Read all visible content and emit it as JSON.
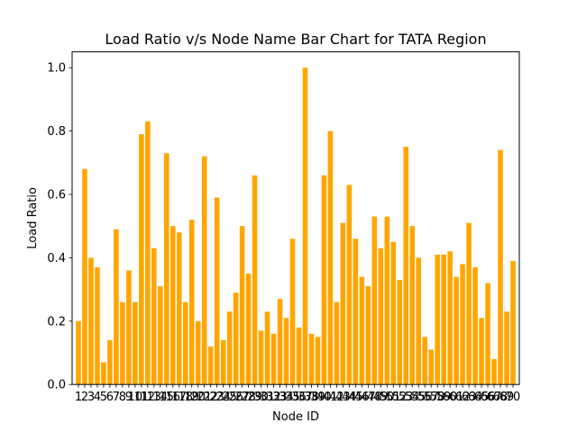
{
  "chart_data": {
    "type": "bar",
    "title": "Load Ratio v/s Node Name Bar Chart for TATA Region",
    "xlabel": "Node ID",
    "ylabel": "Load Ratio",
    "ylim": [
      0,
      1.05
    ],
    "xlim": [
      0.0,
      71.0
    ],
    "yticks": [
      0.0,
      0.2,
      0.4,
      0.6,
      0.8,
      1.0
    ],
    "ytick_labels": [
      "0.0",
      "0.2",
      "0.4",
      "0.6",
      "0.8",
      "1.0"
    ],
    "grid": false,
    "bar_color": "#FFA500",
    "categories": [
      "1",
      "2",
      "3",
      "4",
      "5",
      "6",
      "7",
      "8",
      "9",
      "10",
      "11",
      "12",
      "13",
      "14",
      "15",
      "16",
      "17",
      "18",
      "19",
      "20",
      "21",
      "22",
      "23",
      "24",
      "25",
      "26",
      "27",
      "28",
      "29",
      "30",
      "31",
      "32",
      "33",
      "34",
      "35",
      "36",
      "37",
      "38",
      "39",
      "40",
      "41",
      "42",
      "43",
      "44",
      "45",
      "46",
      "47",
      "48",
      "49",
      "50",
      "51",
      "52",
      "53",
      "54",
      "55",
      "56",
      "57",
      "58",
      "59",
      "60",
      "61",
      "62",
      "63",
      "64",
      "65",
      "66",
      "67",
      "68",
      "69",
      "70"
    ],
    "values": [
      0.2,
      0.68,
      0.4,
      0.37,
      0.07,
      0.14,
      0.49,
      0.26,
      0.36,
      0.26,
      0.79,
      0.83,
      0.43,
      0.31,
      0.73,
      0.5,
      0.48,
      0.26,
      0.52,
      0.2,
      0.72,
      0.12,
      0.59,
      0.14,
      0.23,
      0.29,
      0.5,
      0.35,
      0.66,
      0.17,
      0.23,
      0.16,
      0.27,
      0.21,
      0.46,
      0.18,
      1.0,
      0.16,
      0.15,
      0.66,
      0.8,
      0.26,
      0.51,
      0.63,
      0.46,
      0.34,
      0.31,
      0.53,
      0.43,
      0.53,
      0.45,
      0.33,
      0.75,
      0.5,
      0.4,
      0.15,
      0.11,
      0.41,
      0.41,
      0.42,
      0.34,
      0.38,
      0.51,
      0.37,
      0.21,
      0.32,
      0.08,
      0.74,
      0.23,
      0.39
    ]
  }
}
